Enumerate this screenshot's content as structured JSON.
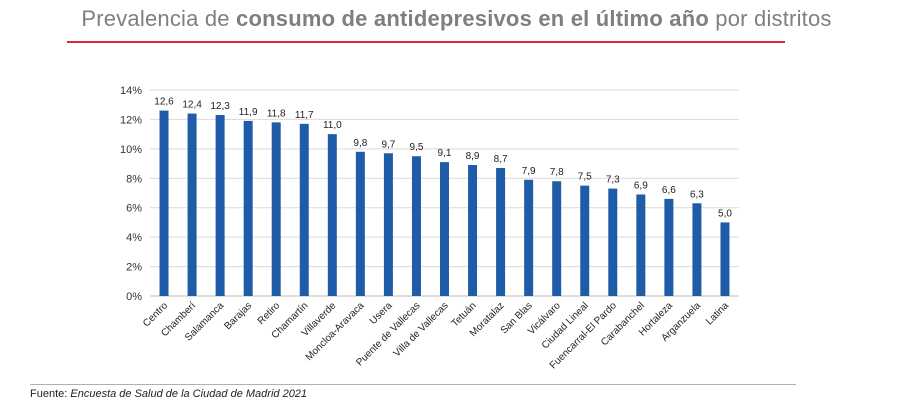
{
  "title": {
    "part1": "Prevalencia de ",
    "bold": "consumo de antidepresivos en el último año",
    "part2": " por distritos"
  },
  "chart_data": {
    "type": "bar",
    "ylim": [
      0,
      14
    ],
    "yticks": [
      0,
      2,
      4,
      6,
      8,
      10,
      12,
      14
    ],
    "ytick_labels": [
      "0%",
      "2%",
      "4%",
      "6%",
      "8%",
      "10%",
      "12%",
      "14%"
    ],
    "grid": true,
    "xlabel": "",
    "ylabel": "",
    "categories": [
      "Centro",
      "Chamberí",
      "Salamanca",
      "Barajas",
      "Retiro",
      "Chamartín",
      "Villaverde",
      "Moncloa-Aravaca",
      "Usera",
      "Puente de Vallecas",
      "Villa de Vallecas",
      "Tetuán",
      "Moratalaz",
      "San Blas",
      "Vicálvaro",
      "Ciudad Lineal",
      "Fuencarral-El Pardo",
      "Carabanchel",
      "Hortaleza",
      "Arganzuela",
      "Latina"
    ],
    "values": [
      12.6,
      12.4,
      12.3,
      11.9,
      11.8,
      11.7,
      11.0,
      9.8,
      9.7,
      9.5,
      9.1,
      8.9,
      8.7,
      7.9,
      7.8,
      7.5,
      7.3,
      6.9,
      6.6,
      6.3,
      5.0
    ],
    "value_labels": [
      "12,6",
      "12,4",
      "12,3",
      "11,9",
      "11,8",
      "11,7",
      "11,0",
      "9,8",
      "9,7",
      "9,5",
      "9,1",
      "8,9",
      "8,7",
      "7,9",
      "7,8",
      "7,5",
      "7,3",
      "6,9",
      "6,6",
      "6,3",
      "5,0"
    ],
    "bar_color": "#1f5ca8"
  },
  "source": {
    "label": "Fuente:",
    "text": "Encuesta de Salud de la Ciudad de Madrid 2021"
  }
}
